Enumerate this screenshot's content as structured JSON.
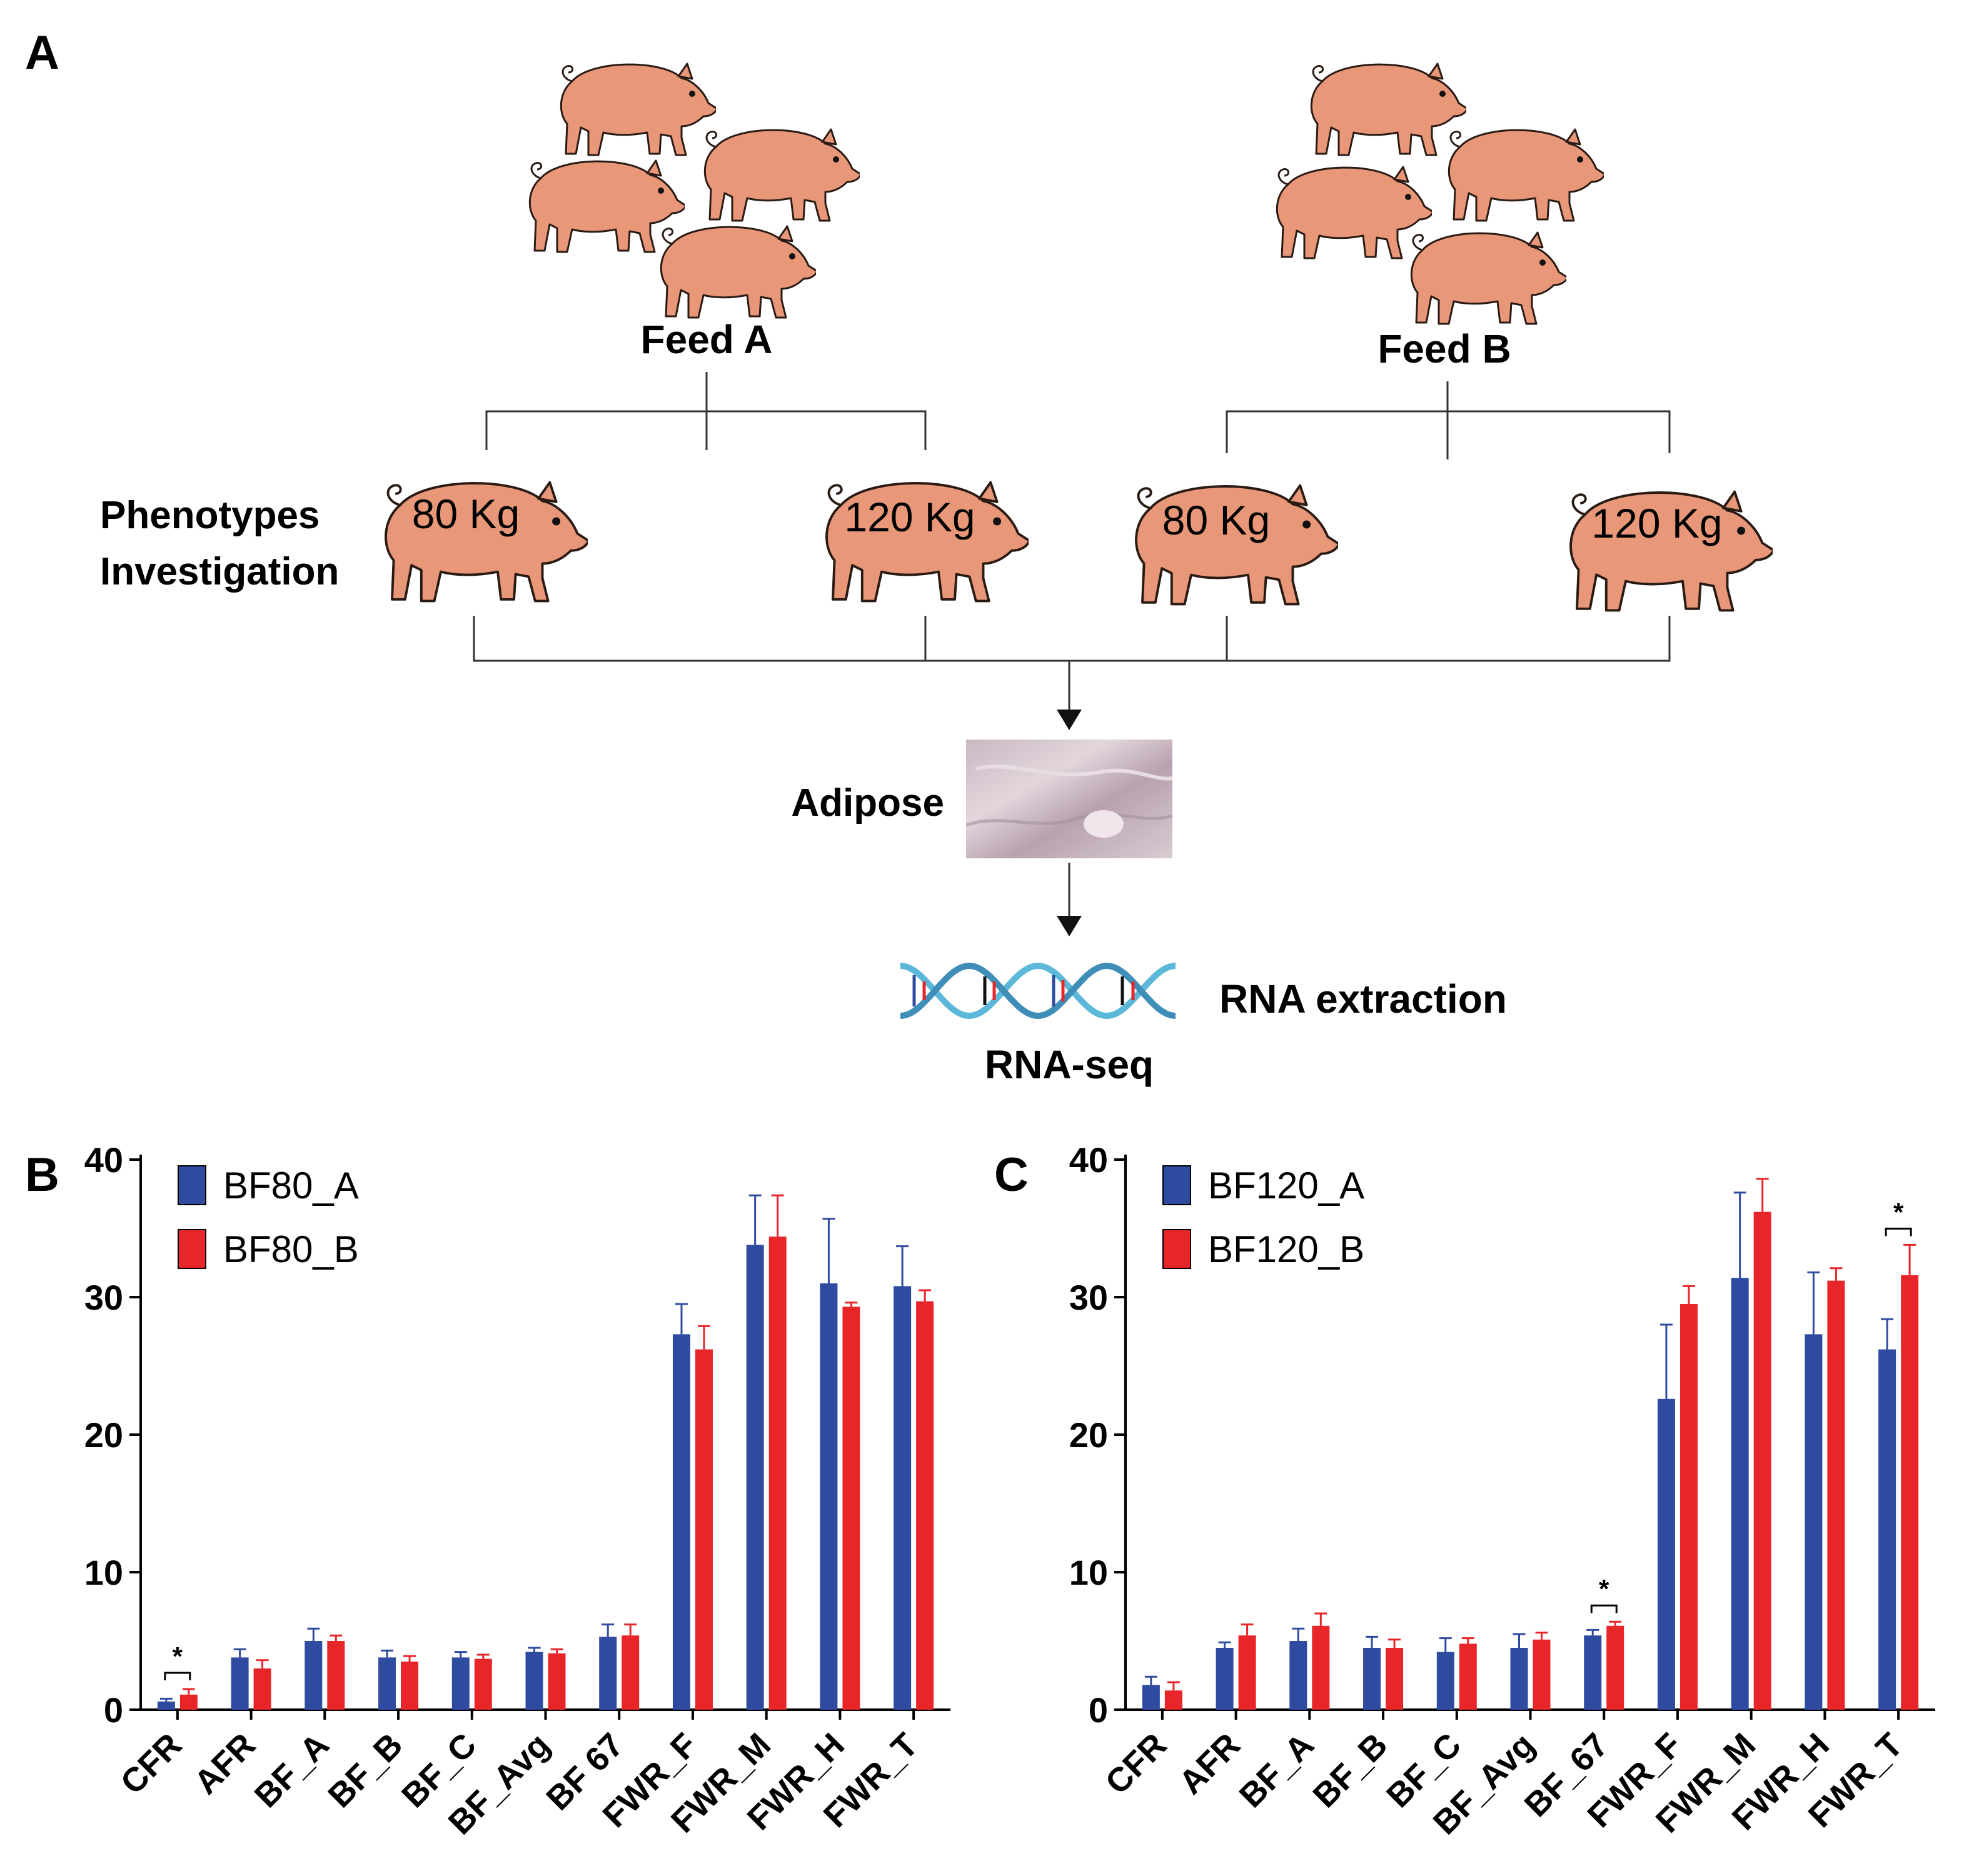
{
  "panels": {
    "a_label": "A",
    "b_label": "B",
    "c_label": "C"
  },
  "diagram": {
    "feed_a": "Feed A",
    "feed_b": "Feed B",
    "phenotypes_line1": "Phenotypes",
    "phenotypes_line2": "Investigation",
    "pig_labels": [
      "80 Kg",
      "120 Kg",
      "80 Kg",
      "120 Kg"
    ],
    "adipose": "Adipose",
    "rna_extraction": "RNA extraction",
    "rna_seq": "RNA-seq"
  },
  "colors": {
    "pig": "#E89878",
    "series_a": "#2F4BA0",
    "series_b": "#E8262A",
    "axis": "#000000"
  },
  "chart_data": [
    {
      "type": "bar",
      "panel": "B",
      "categories": [
        "CFR",
        "AFR",
        "BF_A",
        "BF_B",
        "BF_C",
        "BF_Avg",
        "BF 67",
        "FWR_F",
        "FWR_M",
        "FWR_H",
        "FWR_T"
      ],
      "ylim": [
        0,
        40
      ],
      "yticks": [
        0,
        10,
        20,
        30,
        40
      ],
      "legend_position": "top-left",
      "series": [
        {
          "name": "BF80_A",
          "values": [
            0.6,
            3.8,
            5.0,
            3.8,
            3.8,
            4.2,
            5.3,
            27.3,
            33.8,
            31.0,
            30.8
          ],
          "errors": [
            0.2,
            0.6,
            0.9,
            0.5,
            0.4,
            0.3,
            0.9,
            2.2,
            3.6,
            4.7,
            2.9
          ]
        },
        {
          "name": "BF80_B",
          "values": [
            1.1,
            3.0,
            5.0,
            3.5,
            3.7,
            4.1,
            5.4,
            26.2,
            34.4,
            29.3,
            29.7
          ],
          "errors": [
            0.4,
            0.6,
            0.4,
            0.4,
            0.3,
            0.3,
            0.8,
            1.7,
            3.0,
            0.3,
            0.8
          ]
        }
      ],
      "significance": [
        {
          "category": "CFR",
          "label": "*"
        }
      ]
    },
    {
      "type": "bar",
      "panel": "C",
      "categories": [
        "CFR",
        "AFR",
        "BF_A",
        "BF_B",
        "BF_C",
        "BF_Avg",
        "BF_67",
        "FWR_F",
        "FWR_M",
        "FWR_H",
        "FWR_T"
      ],
      "ylim": [
        0,
        40
      ],
      "yticks": [
        0,
        10,
        20,
        30,
        40
      ],
      "legend_position": "top-left",
      "series": [
        {
          "name": "BF120_A",
          "values": [
            1.8,
            4.5,
            5.0,
            4.5,
            4.2,
            4.5,
            5.4,
            22.6,
            31.4,
            27.3,
            26.2
          ],
          "errors": [
            0.6,
            0.4,
            0.9,
            0.8,
            1.0,
            1.0,
            0.4,
            5.4,
            6.2,
            4.5,
            2.2
          ]
        },
        {
          "name": "BF120_B",
          "values": [
            1.4,
            5.4,
            6.1,
            4.5,
            4.8,
            5.1,
            6.1,
            29.5,
            36.2,
            31.2,
            31.6
          ],
          "errors": [
            0.6,
            0.8,
            0.9,
            0.6,
            0.4,
            0.5,
            0.3,
            1.3,
            2.4,
            0.9,
            2.2
          ]
        }
      ],
      "significance": [
        {
          "category": "BF_67",
          "label": "*"
        },
        {
          "category": "FWR_T",
          "label": "*"
        }
      ]
    }
  ]
}
